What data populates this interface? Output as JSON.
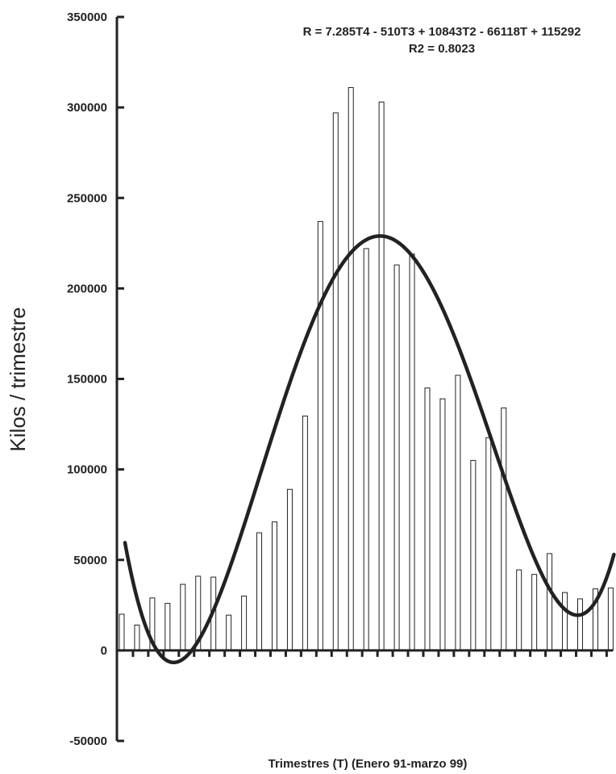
{
  "chart_data": {
    "type": "bar",
    "xlabel": "Trimestres (T) (Enero 91-marzo 99)",
    "ylabel": "Kilos / trimestre",
    "ylim": [
      -50000,
      350000
    ],
    "yticks": [
      350000,
      300000,
      250000,
      200000,
      150000,
      100000,
      50000,
      0,
      -50000
    ],
    "ytick_labels": [
      "350000",
      "300000",
      "250000",
      "200000",
      "150000",
      "100000",
      "50000",
      "0",
      "-50000"
    ],
    "x": [
      1,
      2,
      3,
      4,
      5,
      6,
      7,
      8,
      9,
      10,
      11,
      12,
      13,
      14,
      15,
      16,
      17,
      18,
      19,
      20,
      21,
      22,
      23,
      24,
      25,
      26,
      27,
      28,
      29,
      30,
      31,
      32,
      33
    ],
    "values": [
      20000,
      14000,
      29000,
      26000,
      36500,
      41000,
      40500,
      19500,
      30000,
      65000,
      71000,
      89000,
      129500,
      237000,
      297000,
      311000,
      222000,
      303000,
      213000,
      219000,
      145000,
      139000,
      152000,
      105000,
      117500,
      134000,
      44500,
      42000,
      53500,
      32000,
      28500,
      34000,
      34500
    ],
    "trend": {
      "name": "R = 7.285T4 - 510T3 + 10843T2 - 66118T + 115292",
      "type": "polynomial",
      "coefficients": [
        7.285,
        -510,
        10843,
        -66118,
        115292
      ],
      "r2": 0.8023
    },
    "annotation_lines": [
      "R = 7.285T4 - 510T3 + 10843T2 - 66118T + 115292",
      "R2 = 0.8023"
    ],
    "grid": false,
    "legend": "none",
    "colors": {
      "bar_fill": "#ffffff",
      "bar_stroke": "#222222",
      "trend_line": "#222222",
      "axis": "#222222"
    }
  }
}
